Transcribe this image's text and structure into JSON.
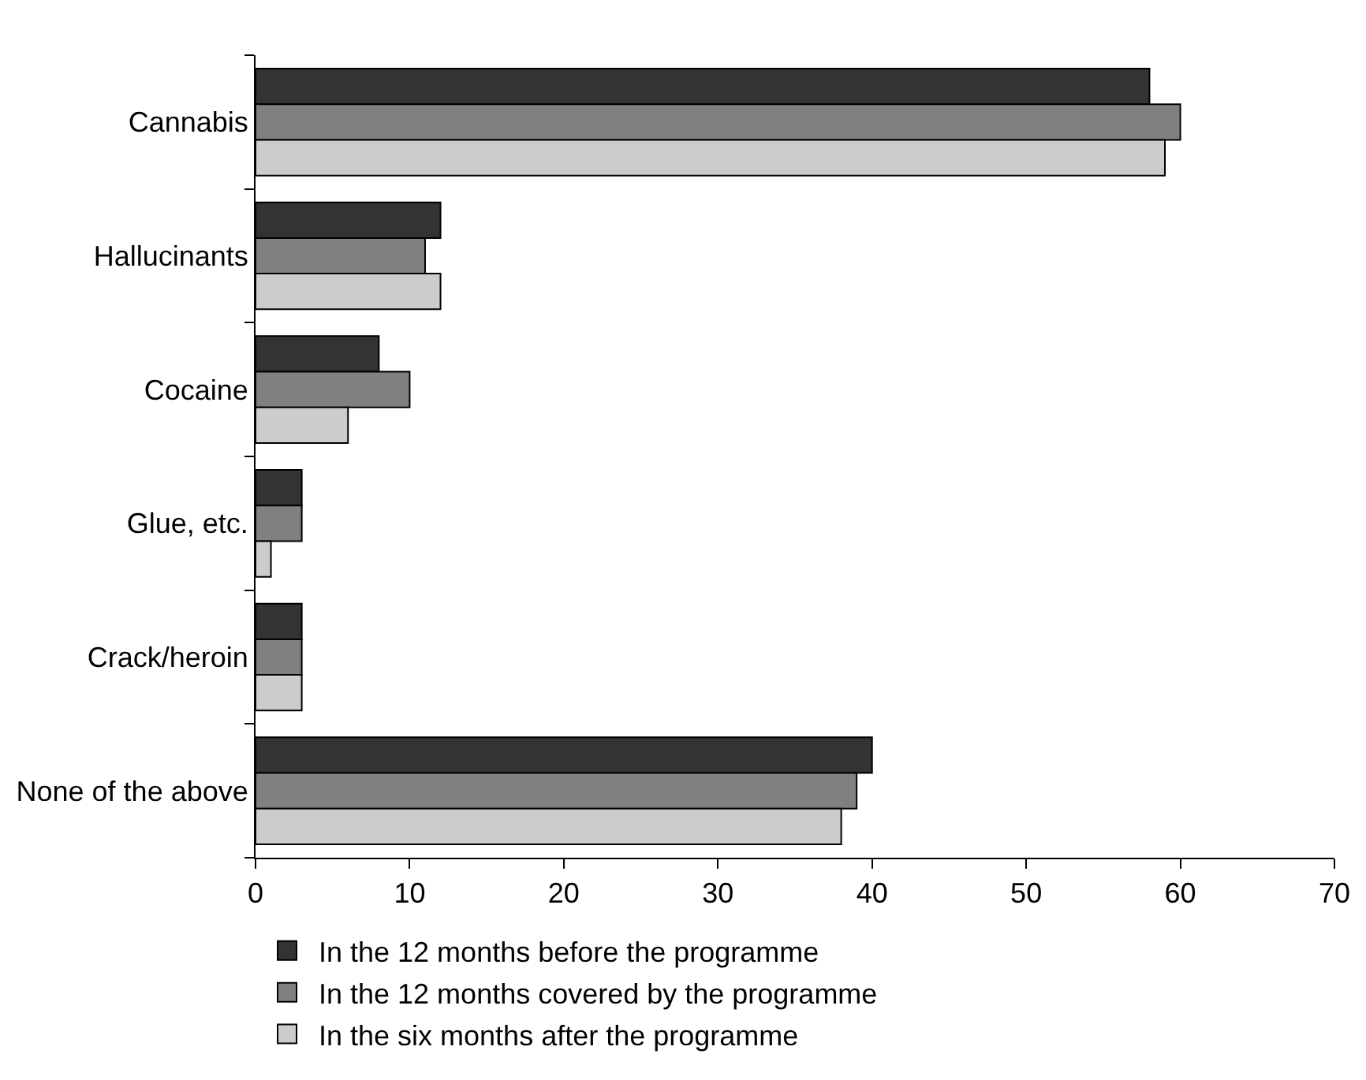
{
  "chart_data": {
    "type": "bar",
    "orientation": "horizontal",
    "categories": [
      "Cannabis",
      "Hallucinants",
      "Cocaine",
      "Glue, etc.",
      "Crack/heroin",
      "None of the above"
    ],
    "series": [
      {
        "name": "In the 12 months before the programme",
        "color": "#333333",
        "values": [
          58,
          12,
          8,
          3,
          3,
          40
        ]
      },
      {
        "name": "In the 12 months covered by the programme",
        "color": "#808080",
        "values": [
          60,
          11,
          10,
          3,
          3,
          39
        ]
      },
      {
        "name": "In the six months after the programme",
        "color": "#cccccc",
        "values": [
          59,
          12,
          6,
          1,
          3,
          38
        ]
      }
    ],
    "xlim": [
      0,
      70
    ],
    "xticks": [
      0,
      10,
      20,
      30,
      40,
      50,
      60,
      70
    ],
    "legend": "bottom"
  }
}
